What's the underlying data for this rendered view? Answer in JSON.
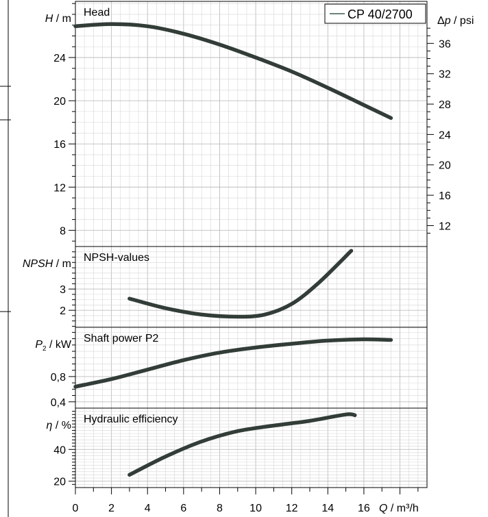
{
  "colors": {
    "curve": "#333d38",
    "legend_text": "#3c5a50"
  },
  "legend": {
    "label": "CP 40/2700",
    "position": "top-right"
  },
  "x_axis": {
    "label_var": "Q",
    "label_unit": " / m³/h",
    "range": [
      0,
      19.5
    ],
    "ticks": [
      0,
      2,
      4,
      6,
      8,
      10,
      12,
      14,
      16
    ],
    "tick_labels": [
      "0",
      "2",
      "4",
      "6",
      "8",
      "10",
      "12",
      "14",
      "16"
    ]
  },
  "chart_data": [
    {
      "type": "line",
      "panel_title": "Head",
      "ylabel_var": "H",
      "ylabel_unit": " / m",
      "ylim": [
        6.5,
        29.2
      ],
      "yticks": [
        8,
        12,
        16,
        20,
        24
      ],
      "ytick_labels": [
        "8",
        "12",
        "16",
        "20",
        "24"
      ],
      "secondary_axis": {
        "label_var": "Δp",
        "label_unit": " / psi",
        "ticks": [
          12,
          16,
          20,
          24,
          28,
          32,
          36
        ],
        "tick_labels": [
          "12",
          "16",
          "20",
          "24",
          "28",
          "32",
          "36"
        ]
      },
      "grid": true,
      "series": [
        {
          "name": "CP 40/2700",
          "x": [
            0,
            2,
            4,
            6,
            8,
            10,
            12,
            14,
            16,
            17.5
          ],
          "y": [
            26.9,
            27.1,
            26.9,
            26.2,
            25.2,
            24.0,
            22.7,
            21.2,
            19.6,
            18.4
          ]
        }
      ]
    },
    {
      "type": "line",
      "panel_title": "NPSH-values",
      "ylabel_var": "NPSH",
      "ylabel_unit": " / m",
      "ylim": [
        1.2,
        5.0
      ],
      "yticks": [
        2,
        3
      ],
      "ytick_labels": [
        "2",
        "3"
      ],
      "grid": true,
      "series": [
        {
          "name": "CP 40/2700",
          "x": [
            3,
            5,
            7,
            9,
            10.5,
            12,
            13.5,
            15.3
          ],
          "y": [
            2.55,
            2.1,
            1.8,
            1.7,
            1.8,
            2.3,
            3.3,
            4.8
          ]
        }
      ]
    },
    {
      "type": "line",
      "panel_title": "Shaft power P2",
      "ylabel_var": "P",
      "ylabel_sub": "2",
      "ylabel_unit": " / kW",
      "ylim": [
        0.3,
        1.58
      ],
      "yticks": [
        0.4,
        0.8
      ],
      "ytick_labels": [
        "0,4",
        "0,8"
      ],
      "grid": true,
      "series": [
        {
          "name": "CP 40/2700",
          "x": [
            0,
            2,
            4,
            6,
            8,
            10,
            12,
            14,
            16,
            17.5
          ],
          "y": [
            0.64,
            0.76,
            0.91,
            1.06,
            1.18,
            1.26,
            1.32,
            1.37,
            1.39,
            1.38
          ]
        }
      ]
    },
    {
      "type": "line",
      "panel_title": "Hydraulic efficiency",
      "ylabel_var": "η",
      "ylabel_unit": " / %",
      "ylim": [
        16,
        66
      ],
      "yticks": [
        20,
        40
      ],
      "ytick_labels": [
        "20",
        "40"
      ],
      "grid": true,
      "series": [
        {
          "name": "CP 40/2700",
          "x": [
            3,
            5,
            7,
            9,
            11,
            13,
            15,
            15.5
          ],
          "y": [
            24,
            35.5,
            45,
            51.5,
            55,
            58,
            62,
            61.5
          ]
        }
      ]
    }
  ]
}
